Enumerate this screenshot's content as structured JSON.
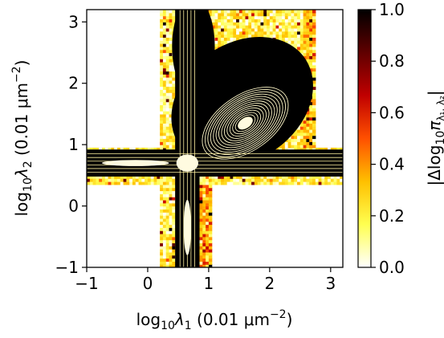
{
  "chart_data": {
    "type": "heatmap",
    "title": "",
    "xlabel": {
      "prefix": "log",
      "prefix_sub": "10",
      "var": "λ",
      "var_sub": "1",
      "units": " (0.01 μm",
      "units_sup": "−2",
      "close": ")"
    },
    "ylabel": {
      "prefix": "log",
      "prefix_sub": "10",
      "var": "λ",
      "var_sub": "2",
      "units": " (0.01 μm",
      "units_sup": "−2",
      "close": ")"
    },
    "xlim": [
      -1,
      3.2
    ],
    "ylim": [
      -1,
      3.2
    ],
    "x_ticks": [
      -1,
      0,
      1,
      2,
      3
    ],
    "y_ticks": [
      -1,
      0,
      1,
      2,
      3
    ],
    "x_tick_labels": [
      "−1",
      "0",
      "1",
      "2",
      "3"
    ],
    "y_tick_labels": [
      "−1",
      "0",
      "1",
      "2",
      "3"
    ],
    "colorbar": {
      "label": {
        "open": "|Δlog",
        "sub": "10",
        "pi": "π",
        "pi_sub": "λ₁, λ₂",
        "close": "|"
      },
      "range": [
        0,
        1
      ],
      "ticks": [
        0.0,
        0.2,
        0.4,
        0.6,
        0.8,
        1.0
      ],
      "tick_labels": [
        "0.0",
        "0.2",
        "0.4",
        "0.6",
        "0.8",
        "1.0"
      ],
      "colormap": [
        "#ffffff",
        "#ffff50",
        "#ffc000",
        "#ff5000",
        "#c00000",
        "#600000",
        "#000000"
      ]
    },
    "contours": {
      "color": "#000000",
      "peak_1": {
        "x": 1.6,
        "y": 1.35,
        "angle_deg": -35,
        "count": 14
      },
      "band_horizontal": {
        "y": 0.7,
        "x_range": [
          -1,
          3.2
        ]
      },
      "band_vertical": {
        "x": 0.65,
        "y_range": [
          -1,
          3.2
        ]
      }
    },
    "heat_region": {
      "horizontal_band_y": [
        0.35,
        0.95
      ],
      "vertical_band_x": [
        0.2,
        1.05
      ],
      "upper_rect": {
        "x": [
          0.2,
          2.75
        ],
        "y": [
          0.95,
          3.2
        ]
      }
    }
  }
}
